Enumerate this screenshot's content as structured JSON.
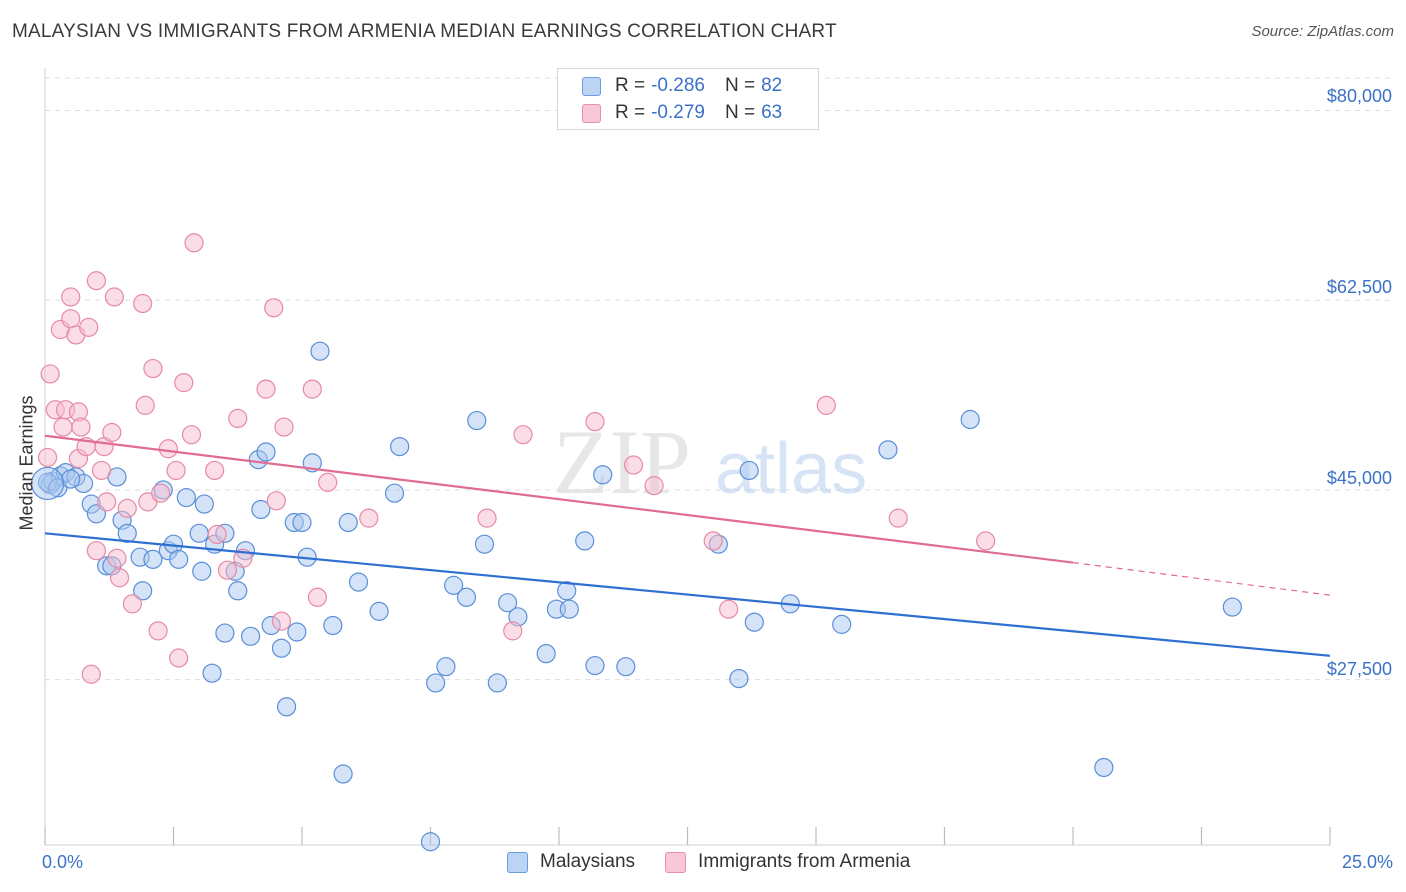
{
  "title": "MALAYSIAN VS IMMIGRANTS FROM ARMENIA MEDIAN EARNINGS CORRELATION CHART",
  "source": "Source: ZipAtlas.com",
  "watermark": {
    "zip": "ZIP",
    "atlas": "atlas"
  },
  "colors": {
    "blue_fill": "#a9c8f0",
    "blue_stroke": "#5b8fd6",
    "blue_line": "#2e6fd1",
    "pink_fill": "#f6bccd",
    "pink_stroke": "#e68aa5",
    "pink_line": "#e06b93",
    "tick_text": "#3b72c8",
    "grid": "#dddddd"
  },
  "legend_top": [
    {
      "r_label": "R =",
      "r_value": "-0.286",
      "n_label": "N =",
      "n_value": "82"
    },
    {
      "r_label": "R =",
      "r_value": "-0.279",
      "n_label": "N =",
      "n_value": "63"
    }
  ],
  "legend_bottom": [
    "Malaysians",
    "Immigrants from Armenia"
  ],
  "chart_data": {
    "type": "scatter",
    "title": "MALAYSIAN VS IMMIGRANTS FROM ARMENIA MEDIAN EARNINGS CORRELATION CHART",
    "xlabel": "",
    "ylabel": "Median Earnings",
    "xlim": [
      0,
      25
    ],
    "ylim": [
      12250,
      83000
    ],
    "x_tick_labels": [
      "0.0%",
      "25.0%"
    ],
    "y_ticks": [
      27500,
      45000,
      62500,
      80000
    ],
    "y_tick_labels": [
      "$27,500",
      "$45,000",
      "$62,500",
      "$80,000"
    ],
    "grid": true,
    "series": [
      {
        "name": "Malaysians",
        "r": -0.286,
        "n": 82,
        "trend": {
          "x": [
            0,
            25
          ],
          "y": [
            41000,
            29700
          ]
        },
        "points": [
          [
            0.1,
            45500
          ],
          [
            0.15,
            45800
          ],
          [
            0.3,
            46300
          ],
          [
            0.4,
            46600
          ],
          [
            0.6,
            46200
          ],
          [
            0.75,
            45600
          ],
          [
            0.9,
            43700
          ],
          [
            1.0,
            42800
          ],
          [
            1.4,
            46200
          ],
          [
            1.5,
            42200
          ],
          [
            1.6,
            41000
          ],
          [
            1.2,
            38000
          ],
          [
            1.3,
            38000
          ],
          [
            1.9,
            35700
          ],
          [
            1.85,
            38800
          ],
          [
            2.1,
            38600
          ],
          [
            2.3,
            45000
          ],
          [
            2.4,
            39400
          ],
          [
            2.5,
            40000
          ],
          [
            2.6,
            38600
          ],
          [
            2.75,
            44300
          ],
          [
            3.0,
            41000
          ],
          [
            3.05,
            37500
          ],
          [
            3.1,
            43700
          ],
          [
            3.25,
            28100
          ],
          [
            3.3,
            40000
          ],
          [
            3.5,
            41000
          ],
          [
            3.5,
            31800
          ],
          [
            3.7,
            37500
          ],
          [
            3.75,
            35700
          ],
          [
            3.9,
            39400
          ],
          [
            4.0,
            31500
          ],
          [
            4.15,
            47800
          ],
          [
            4.2,
            43200
          ],
          [
            4.3,
            48500
          ],
          [
            4.4,
            32500
          ],
          [
            4.6,
            30400
          ],
          [
            4.7,
            25000
          ],
          [
            4.85,
            42000
          ],
          [
            4.9,
            31900
          ],
          [
            5.0,
            42000
          ],
          [
            5.1,
            38800
          ],
          [
            5.2,
            47500
          ],
          [
            5.35,
            57800
          ],
          [
            5.6,
            32500
          ],
          [
            5.8,
            18800
          ],
          [
            5.9,
            42000
          ],
          [
            6.1,
            36500
          ],
          [
            6.5,
            33800
          ],
          [
            6.8,
            44700
          ],
          [
            6.9,
            49000
          ],
          [
            7.5,
            12550
          ],
          [
            7.6,
            27200
          ],
          [
            7.8,
            28700
          ],
          [
            7.95,
            36200
          ],
          [
            8.2,
            35100
          ],
          [
            8.4,
            51400
          ],
          [
            8.55,
            40000
          ],
          [
            8.8,
            27200
          ],
          [
            9.0,
            34600
          ],
          [
            9.2,
            33300
          ],
          [
            9.75,
            29900
          ],
          [
            9.95,
            34000
          ],
          [
            10.15,
            35700
          ],
          [
            10.5,
            40300
          ],
          [
            10.2,
            34000
          ],
          [
            10.7,
            28800
          ],
          [
            10.85,
            46400
          ],
          [
            11.3,
            28700
          ],
          [
            13.1,
            40000
          ],
          [
            13.5,
            27600
          ],
          [
            13.7,
            46800
          ],
          [
            13.8,
            32800
          ],
          [
            14.5,
            34500
          ],
          [
            15.5,
            32600
          ],
          [
            16.4,
            48700
          ],
          [
            18.0,
            51500
          ],
          [
            20.6,
            19400
          ],
          [
            23.1,
            34200
          ],
          [
            0.05,
            45700
          ],
          [
            0.25,
            45200
          ],
          [
            0.5,
            46000
          ]
        ]
      },
      {
        "name": "Immigrants from Armenia",
        "r": -0.279,
        "n": 63,
        "trend": {
          "x": [
            0,
            20
          ],
          "y": [
            50000,
            38300
          ]
        },
        "trend_dashed": {
          "x": [
            20,
            25
          ],
          "y": [
            38300,
            35300
          ]
        },
        "points": [
          [
            0.05,
            48000
          ],
          [
            0.1,
            55700
          ],
          [
            0.2,
            52400
          ],
          [
            0.3,
            59800
          ],
          [
            0.35,
            50800
          ],
          [
            0.4,
            52400
          ],
          [
            0.5,
            60800
          ],
          [
            0.5,
            62800
          ],
          [
            0.6,
            59300
          ],
          [
            0.65,
            52200
          ],
          [
            0.65,
            47900
          ],
          [
            0.7,
            50800
          ],
          [
            0.8,
            49000
          ],
          [
            0.85,
            60000
          ],
          [
            0.9,
            28000
          ],
          [
            1.0,
            39400
          ],
          [
            1.0,
            64300
          ],
          [
            1.1,
            46800
          ],
          [
            1.15,
            49000
          ],
          [
            1.2,
            43900
          ],
          [
            1.3,
            50300
          ],
          [
            1.35,
            62800
          ],
          [
            1.4,
            38700
          ],
          [
            1.45,
            36900
          ],
          [
            1.6,
            43300
          ],
          [
            1.7,
            34500
          ],
          [
            1.9,
            62200
          ],
          [
            1.95,
            52800
          ],
          [
            2.0,
            43900
          ],
          [
            2.1,
            56200
          ],
          [
            2.2,
            32000
          ],
          [
            2.25,
            44700
          ],
          [
            2.4,
            48800
          ],
          [
            2.55,
            46800
          ],
          [
            2.6,
            29500
          ],
          [
            2.7,
            54900
          ],
          [
            2.85,
            50100
          ],
          [
            2.9,
            67800
          ],
          [
            3.3,
            46800
          ],
          [
            3.35,
            40900
          ],
          [
            3.55,
            37600
          ],
          [
            3.75,
            51600
          ],
          [
            3.85,
            38700
          ],
          [
            4.3,
            54300
          ],
          [
            4.45,
            61800
          ],
          [
            4.5,
            44000
          ],
          [
            4.6,
            32900
          ],
          [
            4.65,
            50800
          ],
          [
            5.2,
            54300
          ],
          [
            5.3,
            35100
          ],
          [
            5.5,
            45700
          ],
          [
            6.3,
            42400
          ],
          [
            8.6,
            42400
          ],
          [
            9.1,
            32000
          ],
          [
            9.3,
            50100
          ],
          [
            10.7,
            51300
          ],
          [
            11.45,
            47300
          ],
          [
            11.85,
            45400
          ],
          [
            13.0,
            40300
          ],
          [
            13.3,
            34000
          ],
          [
            15.2,
            52800
          ],
          [
            16.6,
            42400
          ],
          [
            18.3,
            40300
          ]
        ]
      }
    ]
  }
}
